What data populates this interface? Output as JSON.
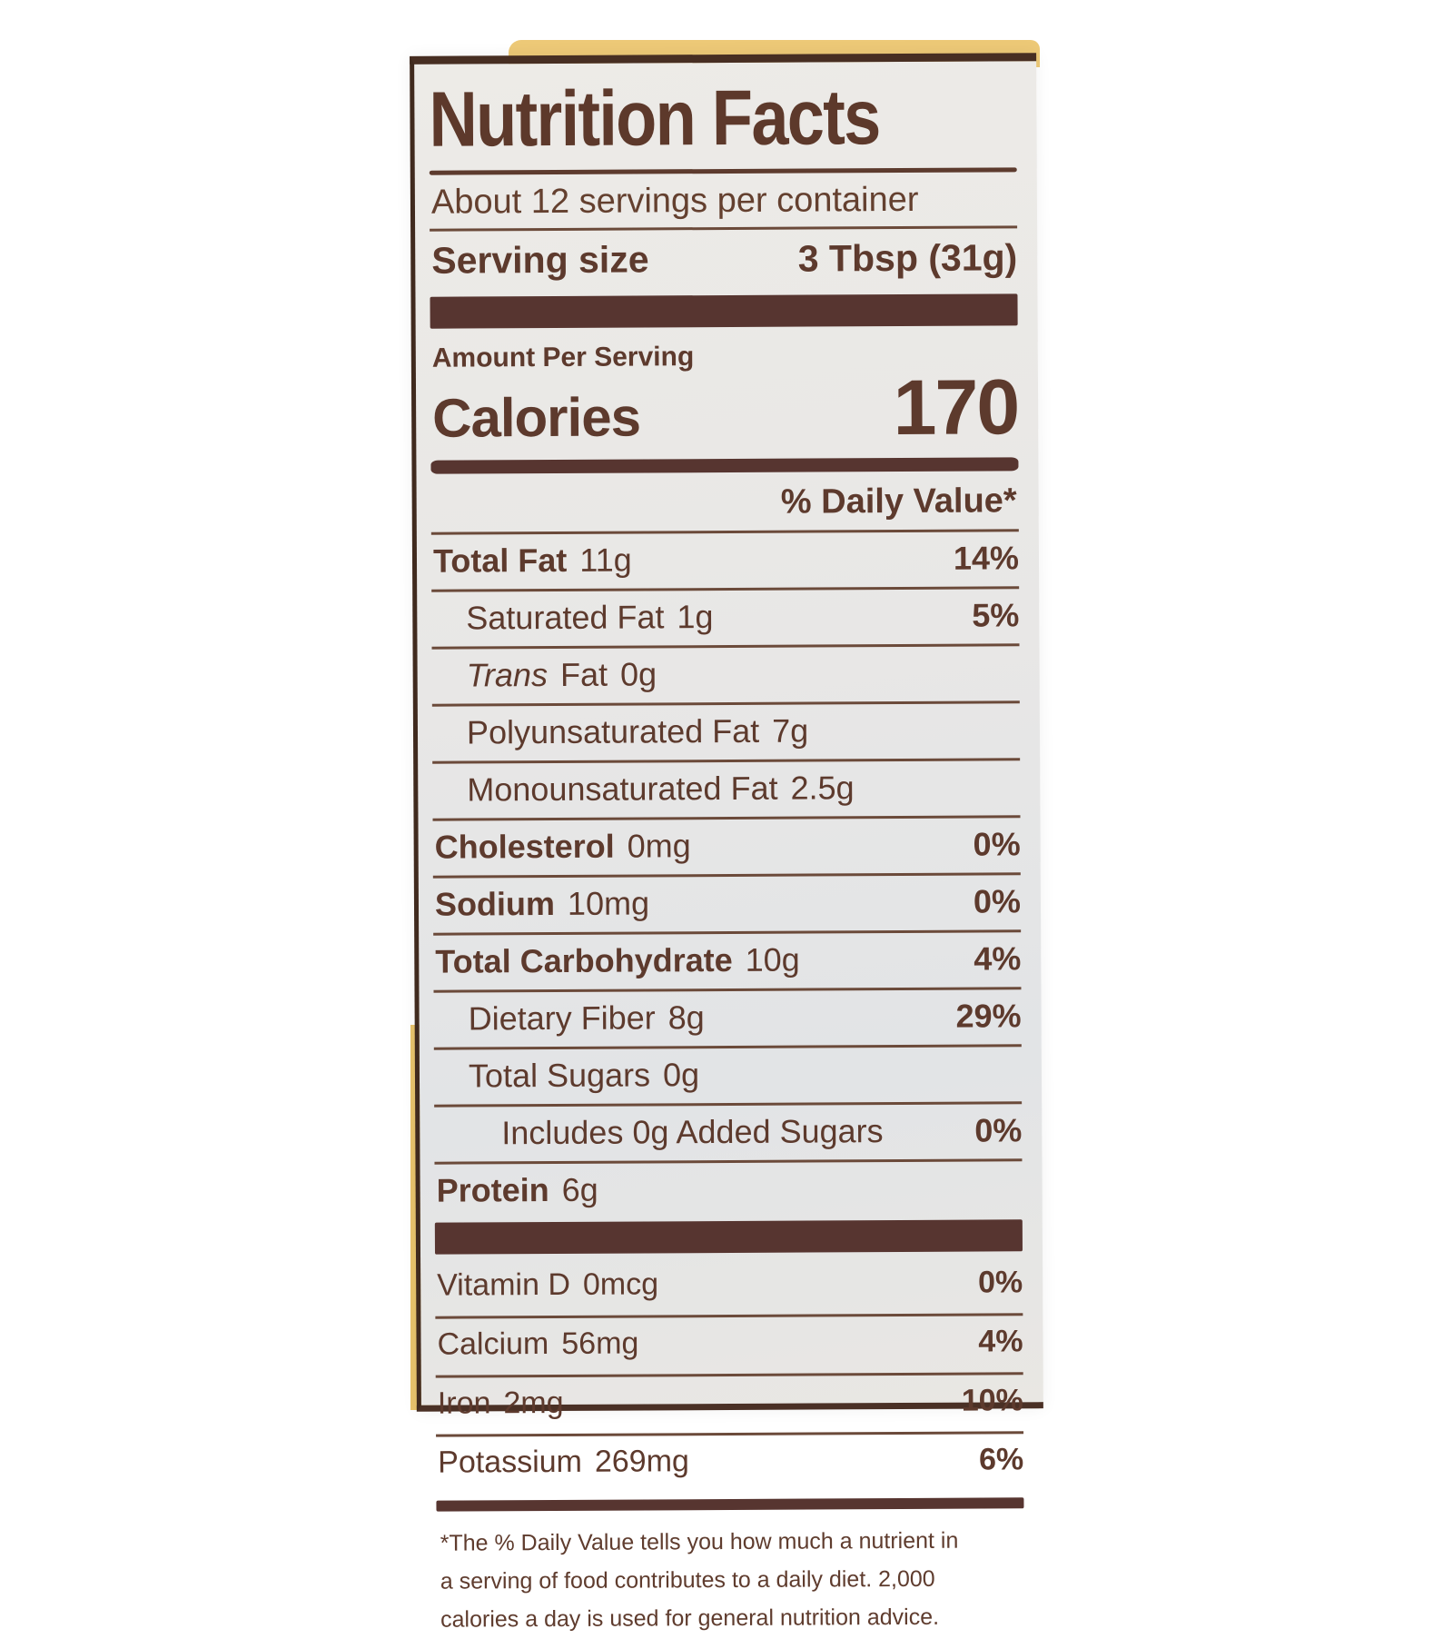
{
  "label": {
    "title": "Nutrition Facts",
    "servings_per_container": "About 12 servings per container",
    "serving_size_label": "Serving size",
    "serving_size_value": "3 Tbsp (31g)",
    "amount_per_serving": "Amount Per Serving",
    "calories_label": "Calories",
    "calories_value": "170",
    "daily_value_header": "% Daily Value*",
    "rows": [
      {
        "name": "Total Fat",
        "amount": "11g",
        "dv": "14%"
      },
      {
        "name": "Saturated Fat",
        "amount": "1g",
        "dv": "5%"
      },
      {
        "name_italic": "Trans",
        "name_rest": "Fat",
        "amount": "0g",
        "dv": ""
      },
      {
        "name": "Polyunsaturated Fat",
        "amount": "7g",
        "dv": ""
      },
      {
        "name": "Monounsaturated Fat",
        "amount": "2.5g",
        "dv": ""
      },
      {
        "name": "Cholesterol",
        "amount": "0mg",
        "dv": "0%"
      },
      {
        "name": "Sodium",
        "amount": "10mg",
        "dv": "0%"
      },
      {
        "name": "Total Carbohydrate",
        "amount": "10g",
        "dv": "4%"
      },
      {
        "name": "Dietary Fiber",
        "amount": "8g",
        "dv": "29%"
      },
      {
        "name": "Total Sugars",
        "amount": "0g",
        "dv": ""
      },
      {
        "name": "Includes 0g Added Sugars",
        "amount": "",
        "dv": "0%"
      },
      {
        "name": "Protein",
        "amount": "6g",
        "dv": ""
      }
    ],
    "vitamins": [
      {
        "name": "Vitamin D",
        "amount": "0mcg",
        "dv": "0%"
      },
      {
        "name": "Calcium",
        "amount": "56mg",
        "dv": "4%"
      },
      {
        "name": "Iron",
        "amount": "2mg",
        "dv": "10%"
      },
      {
        "name": "Potassium",
        "amount": "269mg",
        "dv": "6%"
      }
    ],
    "footnote_lines": [
      "*The % Daily Value tells you how much a nutrient in",
      "a serving of food contributes to a daily diet. 2,000",
      "calories a day is used for general nutrition advice."
    ]
  },
  "colors": {
    "text_brown": "#5d3a2d",
    "bar_brown": "#573530",
    "label_background": "#e8e7e5",
    "bag_yellow": "#eac870",
    "page_background": "#ffffff"
  }
}
